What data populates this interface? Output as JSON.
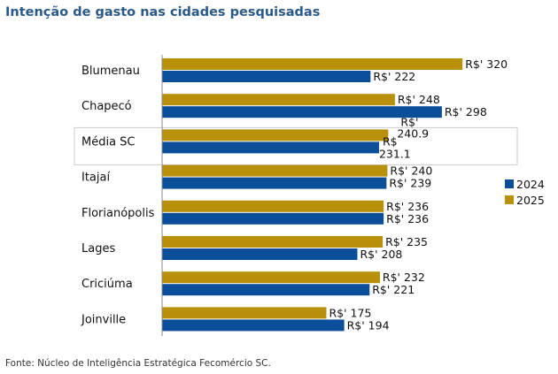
{
  "chart_data": {
    "type": "bar",
    "orientation": "horizontal",
    "title": "Intenção de gasto nas cidades pesquisadas",
    "source": "Fonte: Núcleo de Inteligência Estratégica Fecomércio SC.",
    "categories": [
      "Blumenau",
      "Chapecó",
      "Média SC",
      "Itajaí",
      "Florianópolis",
      "Lages",
      "Criciúma",
      "Joinville"
    ],
    "highlighted_category": "Média SC",
    "series": [
      {
        "name": "2025",
        "color": "#B8900A",
        "values": [
          320,
          248,
          240.9,
          240,
          236,
          235,
          232,
          175
        ],
        "labels": [
          [
            "R$' 320"
          ],
          [
            "R$' 248"
          ],
          [
            "R$'",
            "240.9"
          ],
          [
            "R$' 240"
          ],
          [
            "R$' 236"
          ],
          [
            "R$' 235"
          ],
          [
            "R$' 232"
          ],
          [
            "R$' 175"
          ]
        ]
      },
      {
        "name": "2024",
        "color": "#0B4E9A",
        "values": [
          222,
          298,
          231.1,
          239,
          236,
          208,
          221,
          194
        ],
        "labels": [
          [
            "R$' 222"
          ],
          [
            "R$' 298"
          ],
          [
            "R$",
            "231.1"
          ],
          [
            "R$' 239"
          ],
          [
            "R$' 236"
          ],
          [
            "R$' 208"
          ],
          [
            "R$' 221"
          ],
          [
            "R$' 194"
          ]
        ]
      }
    ],
    "legend": {
      "placement": "right",
      "order": [
        "2024",
        "2025"
      ]
    },
    "grid": false
  }
}
